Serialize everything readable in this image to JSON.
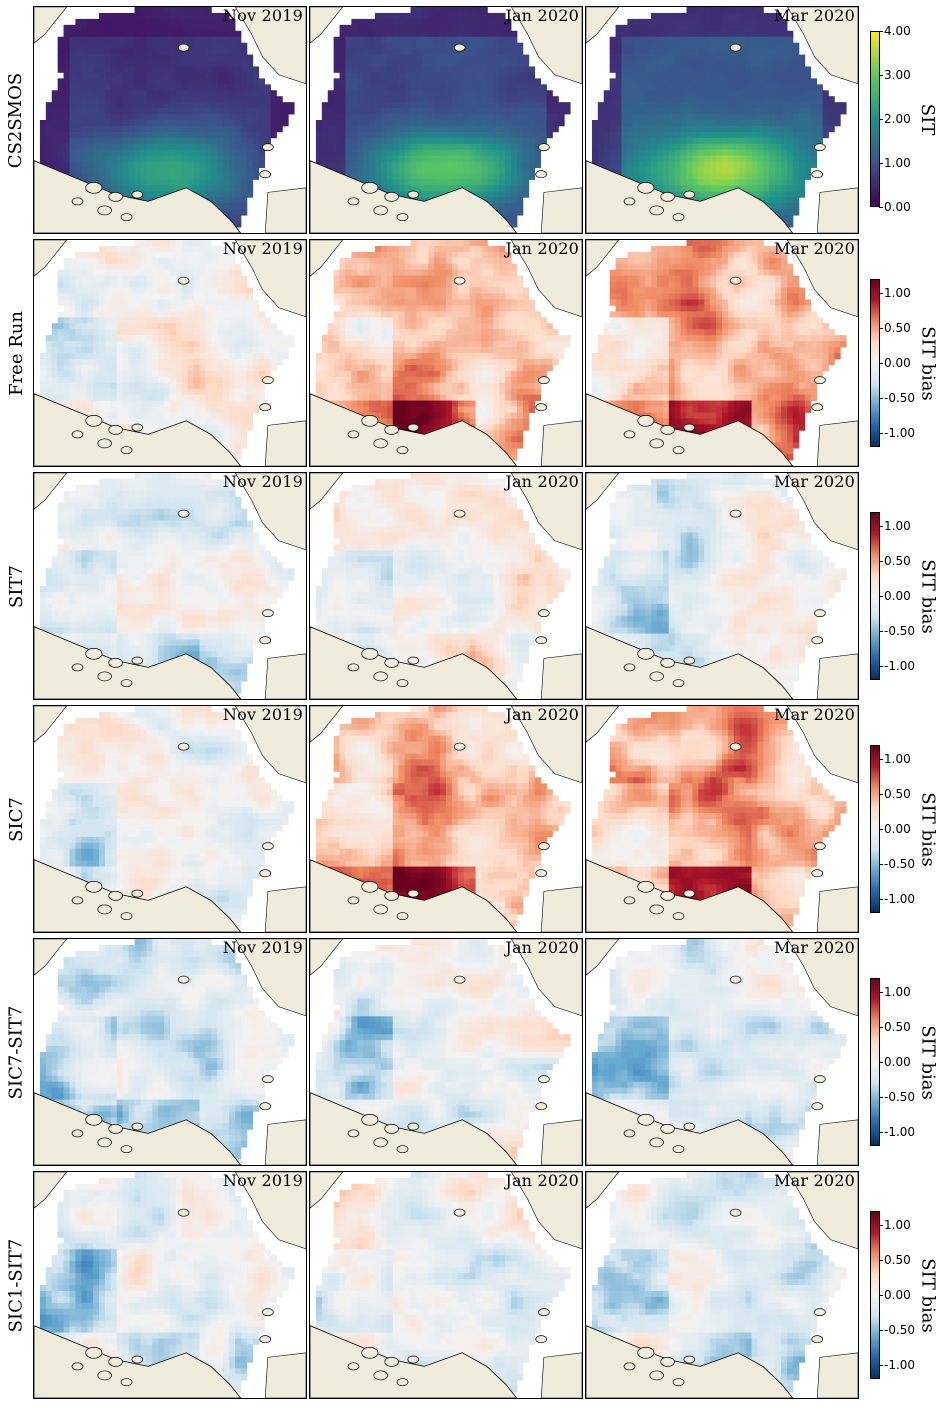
{
  "chart_data": {
    "type": "heatmap",
    "columns": [
      "Nov 2019",
      "Jan 2020",
      "Mar 2020"
    ],
    "rows": [
      {
        "label": "CS2SMOS",
        "colorbar": {
          "label": "SIT",
          "colormap": "viridis",
          "range": [
            0.0,
            4.0
          ],
          "ticks": [
            "0.00",
            "1.00",
            "2.00",
            "3.00",
            "4.00"
          ],
          "tick_values": [
            0,
            1,
            2,
            3,
            4
          ]
        },
        "fields": [
          {
            "month": "Nov 2019",
            "mean": 1.2,
            "peak": 2.4
          },
          {
            "month": "Jan 2020",
            "mean": 1.6,
            "peak": 2.9
          },
          {
            "month": "Mar 2020",
            "mean": 2.0,
            "peak": 3.4
          }
        ]
      },
      {
        "label": "Free Run",
        "colorbar": {
          "label": "SIT bias",
          "colormap": "RdBu_r",
          "range": [
            -1.2,
            1.2
          ],
          "ticks": [
            "-1.00",
            "-0.50",
            "0.00",
            "0.50",
            "1.00"
          ],
          "tick_values": [
            -1.0,
            -0.5,
            0.0,
            0.5,
            1.0
          ]
        },
        "fields": [
          {
            "month": "Nov 2019",
            "mean_bias": 0.05
          },
          {
            "month": "Jan 2020",
            "mean_bias": 0.45
          },
          {
            "month": "Mar 2020",
            "mean_bias": 0.45
          }
        ]
      },
      {
        "label": "SIT7",
        "colorbar": {
          "label": "SIT bias",
          "colormap": "RdBu_r",
          "range": [
            -1.2,
            1.2
          ],
          "ticks": [
            "-1.00",
            "-0.50",
            "0.00",
            "0.50",
            "1.00"
          ],
          "tick_values": [
            -1.0,
            -0.5,
            0.0,
            0.5,
            1.0
          ]
        },
        "fields": [
          {
            "month": "Nov 2019",
            "mean_bias": -0.15
          },
          {
            "month": "Jan 2020",
            "mean_bias": 0.05
          },
          {
            "month": "Mar 2020",
            "mean_bias": -0.05
          }
        ]
      },
      {
        "label": "SIC7",
        "colorbar": {
          "label": "SIT bias",
          "colormap": "RdBu_r",
          "range": [
            -1.2,
            1.2
          ],
          "ticks": [
            "-1.00",
            "-0.50",
            "0.00",
            "0.50",
            "1.00"
          ],
          "tick_values": [
            -1.0,
            -0.5,
            0.0,
            0.5,
            1.0
          ]
        },
        "fields": [
          {
            "month": "Nov 2019",
            "mean_bias": 0.0
          },
          {
            "month": "Jan 2020",
            "mean_bias": 0.45
          },
          {
            "month": "Mar 2020",
            "mean_bias": 0.45
          }
        ]
      },
      {
        "label": "SIC7-SIT7",
        "colorbar": {
          "label": "SIT bias",
          "colormap": "RdBu_r",
          "range": [
            -1.2,
            1.2
          ],
          "ticks": [
            "-1.00",
            "-0.50",
            "0.00",
            "0.50",
            "1.00"
          ],
          "tick_values": [
            -1.0,
            -0.5,
            0.0,
            0.5,
            1.0
          ]
        },
        "fields": [
          {
            "month": "Nov 2019",
            "mean_bias": -0.2
          },
          {
            "month": "Jan 2020",
            "mean_bias": 0.0
          },
          {
            "month": "Mar 2020",
            "mean_bias": -0.1
          }
        ]
      },
      {
        "label": "SIC1-SIT7",
        "colorbar": {
          "label": "SIT bias",
          "colormap": "RdBu_r",
          "range": [
            -1.2,
            1.2
          ],
          "ticks": [
            "-1.00",
            "-0.50",
            "0.00",
            "0.50",
            "1.00"
          ],
          "tick_values": [
            -1.0,
            -0.5,
            0.0,
            0.5,
            1.0
          ]
        },
        "fields": [
          {
            "month": "Nov 2019",
            "mean_bias": -0.15
          },
          {
            "month": "Jan 2020",
            "mean_bias": 0.0
          },
          {
            "month": "Mar 2020",
            "mean_bias": -0.1
          }
        ]
      }
    ]
  },
  "colors": {
    "land": "#efecdc",
    "open_water": "#ffffff",
    "coast": "#000000"
  }
}
